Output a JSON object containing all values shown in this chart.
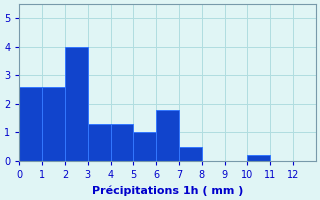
{
  "values": [
    2.6,
    2.6,
    4.0,
    1.3,
    1.3,
    1.0,
    1.8,
    0.5,
    0.0,
    0.0,
    0.2,
    0.0,
    0.0
  ],
  "bar_color": "#1144cc",
  "bar_edge_color": "#3377ff",
  "xlabel": "Précipitations 1h ( mm )",
  "ylim": [
    0,
    5.5
  ],
  "yticks": [
    0,
    1,
    2,
    3,
    4,
    5
  ],
  "xticks": [
    0,
    1,
    2,
    3,
    4,
    5,
    6,
    7,
    8,
    9,
    10,
    11,
    12
  ],
  "grid_color": "#b0dde0",
  "bg_color": "#e0f5f5",
  "fig_bg_color": "#e0f5f5",
  "xlabel_color": "#0000cc",
  "tick_color": "#0000cc",
  "xlabel_fontsize": 8
}
